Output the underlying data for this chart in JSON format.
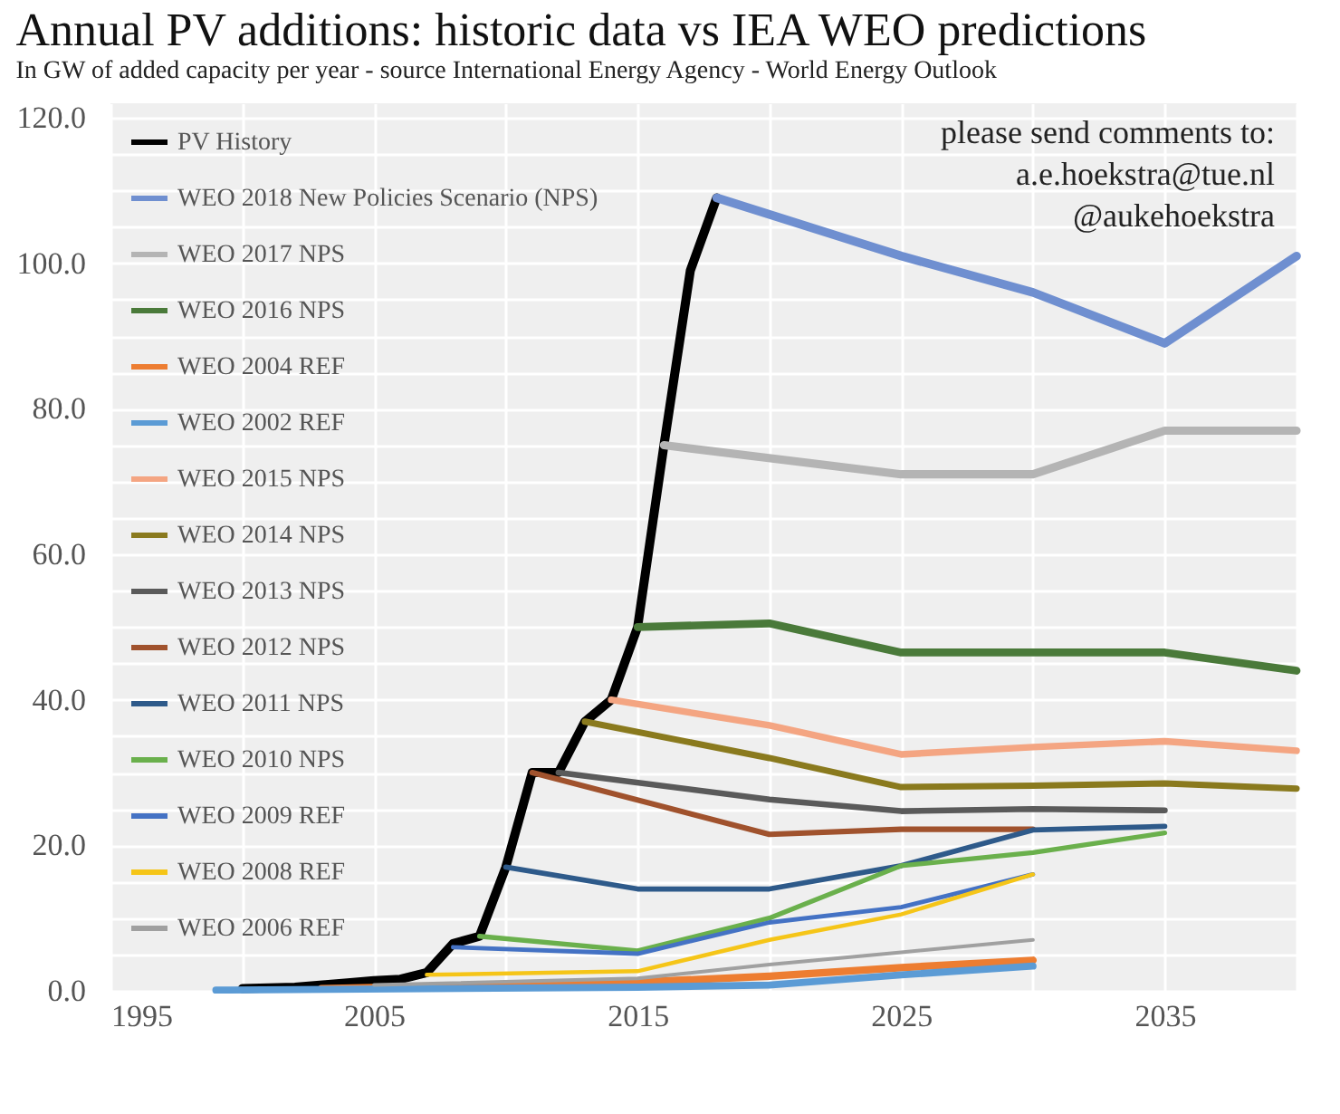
{
  "chart_data": {
    "type": "line",
    "title": "Annual PV additions: historic data vs IEA WEO predictions",
    "subtitle": "In GW of added capacity per year - source International Energy Agency - World Energy Outlook",
    "annotations": [
      "please send comments to:\na.e.hoekstra@tue.nl\n@aukehoekstra"
    ],
    "xlim": [
      1995,
      2040
    ],
    "xticks": [
      1995,
      {
        "value": 2000,
        "label": null
      },
      2005,
      {
        "value": 2010,
        "label": null
      },
      2015,
      {
        "value": 2020,
        "label": null
      },
      2025,
      {
        "value": 2030,
        "label": null
      },
      2035,
      {
        "value": 2040,
        "label": null
      }
    ],
    "ylim": [
      0,
      122
    ],
    "yticks": [
      {
        "value": 0,
        "label": "0.0"
      },
      {
        "value": 5,
        "label": null
      },
      {
        "value": 10,
        "label": null
      },
      {
        "value": 15,
        "label": null
      },
      {
        "value": 20,
        "label": "20.0"
      },
      {
        "value": 25,
        "label": null
      },
      {
        "value": 30,
        "label": null
      },
      {
        "value": 35,
        "label": null
      },
      {
        "value": 40,
        "label": "40.0"
      },
      {
        "value": 45,
        "label": null
      },
      {
        "value": 50,
        "label": null
      },
      {
        "value": 55,
        "label": null
      },
      {
        "value": 60,
        "label": "60.0"
      },
      {
        "value": 65,
        "label": null
      },
      {
        "value": 70,
        "label": null
      },
      {
        "value": 75,
        "label": null
      },
      {
        "value": 80,
        "label": "80.0"
      },
      {
        "value": 85,
        "label": null
      },
      {
        "value": 90,
        "label": null
      },
      {
        "value": 95,
        "label": null
      },
      {
        "value": 100,
        "label": "100.0"
      },
      {
        "value": 105,
        "label": null
      },
      {
        "value": 110,
        "label": null
      },
      {
        "value": 115,
        "label": null
      },
      {
        "value": 120,
        "label": "120.0"
      }
    ],
    "grid": true,
    "legend": "top left",
    "marker": "none",
    "line_style": "solid",
    "series": [
      {
        "name": "PV History",
        "color": "#000000",
        "x": [
          2000,
          2002,
          2004,
          2005,
          2006,
          2007,
          2008,
          2009,
          2010,
          2011,
          2012,
          2013,
          2014,
          2015,
          2016,
          2017,
          2018
        ],
        "values": [
          0.3,
          0.5,
          1.1,
          1.4,
          1.6,
          2.5,
          6.5,
          7.5,
          17,
          30,
          30,
          37,
          40,
          50,
          75,
          99,
          109
        ]
      },
      {
        "name": "WEO 2018 New Policies Scenario (NPS)",
        "color": "#6f8fd0",
        "x": [
          2018,
          2025,
          2030,
          2035,
          2040
        ],
        "values": [
          109,
          101,
          96,
          89,
          101
        ]
      },
      {
        "name": "WEO 2017 NPS",
        "color": "#b4b4b4",
        "x": [
          2016,
          2025,
          2030,
          2035,
          2040
        ],
        "values": [
          75,
          71,
          71,
          77,
          77
        ]
      },
      {
        "name": "WEO 2016 NPS",
        "color": "#4a7a3a",
        "x": [
          2015,
          2020,
          2025,
          2030,
          2035,
          2040
        ],
        "values": [
          50,
          50.5,
          46.5,
          46.5,
          46.5,
          44
        ]
      },
      {
        "name": "WEO 2004 REF",
        "color": "#ed7d31",
        "x": [
          2003,
          2015,
          2020,
          2025,
          2030
        ],
        "values": [
          0.3,
          1.2,
          2,
          3.2,
          4.2
        ]
      },
      {
        "name": "WEO 2002 REF",
        "color": "#5b9bd5",
        "x": [
          1999,
          2015,
          2020,
          2025,
          2030
        ],
        "values": [
          0.1,
          0.5,
          0.8,
          2.2,
          3.4
        ]
      },
      {
        "name": "WEO 2015 NPS",
        "color": "#f4a582",
        "x": [
          2014,
          2020,
          2025,
          2030,
          2035,
          2040
        ],
        "values": [
          40,
          36.5,
          32.5,
          33.5,
          34.3,
          33
        ]
      },
      {
        "name": "WEO 2014 NPS",
        "color": "#8a7a1e",
        "x": [
          2013,
          2020,
          2025,
          2030,
          2035,
          2040
        ],
        "values": [
          37,
          32,
          28,
          28.2,
          28.5,
          27.8
        ]
      },
      {
        "name": "WEO 2013 NPS",
        "color": "#5a5a5a",
        "x": [
          2012,
          2020,
          2025,
          2030,
          2035
        ],
        "values": [
          30,
          26.3,
          24.7,
          25,
          24.8
        ]
      },
      {
        "name": "WEO 2012 NPS",
        "color": "#a0522d",
        "x": [
          2011,
          2020,
          2025,
          2030
        ],
        "values": [
          30,
          21.5,
          22.2,
          22.2
        ]
      },
      {
        "name": "WEO 2011 NPS",
        "color": "#2e5a8a",
        "x": [
          2010,
          2015,
          2020,
          2025,
          2030,
          2035
        ],
        "values": [
          17,
          14,
          14,
          17.2,
          22.1,
          22.6
        ]
      },
      {
        "name": "WEO 2010 NPS",
        "color": "#6ab04c",
        "x": [
          2009,
          2015,
          2020,
          2025,
          2030,
          2035
        ],
        "values": [
          7.5,
          5.5,
          10,
          17.2,
          19,
          21.7
        ]
      },
      {
        "name": "WEO 2009 REF",
        "color": "#4472c4",
        "x": [
          2008,
          2015,
          2020,
          2025,
          2030
        ],
        "values": [
          6,
          5.1,
          9.4,
          11.5,
          16
        ]
      },
      {
        "name": "WEO 2008 REF",
        "color": "#f5c518",
        "x": [
          2007,
          2015,
          2020,
          2025,
          2030
        ],
        "values": [
          2.2,
          2.7,
          7,
          10.5,
          16
        ]
      },
      {
        "name": "WEO 2006 REF",
        "color": "#a0a0a0",
        "x": [
          2005,
          2015,
          2020,
          2025,
          2030
        ],
        "values": [
          0.8,
          1.7,
          3.6,
          5.3,
          7
        ]
      }
    ]
  }
}
